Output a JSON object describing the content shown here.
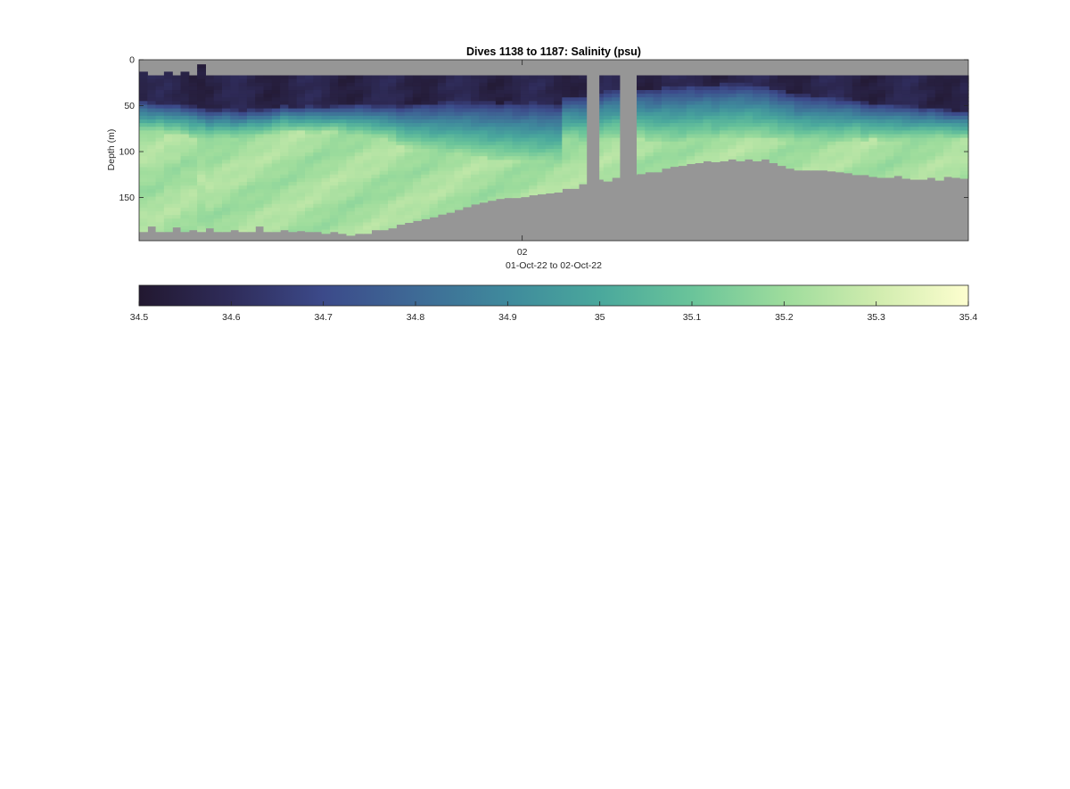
{
  "chart_data": {
    "type": "heatmap",
    "title": "Dives 1138 to 1187: Salinity (psu)",
    "ylabel": "Depth (m)",
    "xlabel": "01-Oct-22 to 02-Oct-22",
    "y_ticks": [
      0,
      50,
      100,
      150
    ],
    "ylim": [
      0,
      197
    ],
    "y_reversed": true,
    "x_ticks": [
      {
        "label": "02",
        "position": 50
      }
    ],
    "xlim": [
      1138,
      1187
    ],
    "no_data_color": "#969696",
    "columns": {
      "count": 100,
      "surface_depth": [
        13,
        17,
        17,
        13,
        17,
        13,
        17,
        5,
        17,
        17,
        17,
        17,
        17,
        17,
        17,
        17,
        17,
        17,
        17,
        17,
        17,
        17,
        17,
        17,
        17,
        17,
        17,
        17,
        17,
        17,
        17,
        17,
        17,
        17,
        17,
        17,
        17,
        17,
        17,
        17,
        17,
        17,
        17,
        17,
        17,
        17,
        17,
        17,
        17,
        17,
        17,
        17,
        17,
        17,
        17,
        17,
        17,
        17,
        17,
        17,
        17,
        17,
        17,
        17,
        17,
        17,
        17,
        17,
        17,
        17,
        17,
        17,
        17,
        17,
        17,
        17,
        17,
        17,
        17,
        17,
        17,
        17,
        17,
        17,
        17,
        17,
        17,
        17,
        17,
        17,
        17,
        17,
        17,
        17,
        17,
        17,
        17,
        17,
        17,
        17
      ],
      "bottom_depth": [
        187,
        181,
        187,
        187,
        182,
        187,
        185,
        187,
        183,
        187,
        187,
        185,
        187,
        187,
        181,
        187,
        187,
        185,
        187,
        186,
        187,
        187,
        189,
        187,
        189,
        191,
        189,
        189,
        185,
        185,
        183,
        179,
        177,
        175,
        173,
        171,
        168,
        166,
        163,
        160,
        157,
        155,
        153,
        151,
        150,
        150,
        149,
        147,
        146,
        145,
        144,
        140,
        140,
        135,
        135,
        130,
        132,
        128,
        128,
        125,
        124,
        122,
        122,
        118,
        116,
        115,
        113,
        112,
        110,
        111,
        110,
        108,
        110,
        108,
        110,
        108,
        112,
        115,
        118,
        120,
        120,
        120,
        120,
        121,
        122,
        123,
        125,
        125,
        127,
        128,
        128,
        126,
        129,
        130,
        130,
        128,
        131,
        127,
        128,
        129
      ],
      "halocline_top": [
        45,
        47,
        48,
        49,
        49,
        50,
        51,
        53,
        55,
        55,
        54,
        55,
        56,
        54,
        55,
        54,
        52,
        50,
        52,
        52,
        50,
        51,
        52,
        51,
        50,
        50,
        49,
        49,
        50,
        50,
        50,
        51,
        50,
        49,
        48,
        48,
        47,
        46,
        47,
        46,
        47,
        47,
        47,
        48,
        47,
        48,
        48,
        46,
        48,
        48,
        49,
        40,
        40,
        40,
        38,
        36,
        33,
        32,
        31,
        30,
        32,
        32,
        33,
        29,
        30,
        30,
        28,
        29,
        28,
        29,
        27,
        27,
        26,
        27,
        28,
        28,
        32,
        34,
        36,
        39,
        39,
        40,
        40,
        41,
        42,
        43,
        45,
        47,
        49,
        48,
        48,
        49,
        50,
        51,
        53,
        52,
        54,
        55,
        56,
        56
      ],
      "halocline_bottom": [
        80,
        80,
        78,
        80,
        80,
        82,
        85,
        85,
        88,
        85,
        85,
        87,
        85,
        84,
        83,
        82,
        80,
        78,
        78,
        78,
        79,
        79,
        78,
        78,
        80,
        82,
        82,
        84,
        85,
        86,
        88,
        92,
        95,
        96,
        98,
        100,
        101,
        102,
        102,
        104,
        105,
        106,
        108,
        108,
        108,
        110,
        110,
        112,
        112,
        112,
        112,
        88,
        88,
        90,
        88,
        88,
        86,
        85,
        85,
        84,
        85,
        88,
        88,
        90,
        90,
        90,
        88,
        88,
        86,
        88,
        86,
        86,
        86,
        84,
        85,
        86,
        86,
        88,
        88,
        90,
        90,
        90,
        90,
        90,
        90,
        88,
        86,
        88,
        86,
        88,
        88,
        88,
        88,
        88,
        86,
        86,
        85,
        86,
        86,
        86
      ]
    },
    "gaps": [
      {
        "from_column": 54,
        "to_column": 55.5,
        "top": 15,
        "bottom": 147
      },
      {
        "from_column": 58,
        "to_column": 60,
        "top": 15,
        "bottom": 143
      }
    ],
    "colorbar": {
      "min": 34.5,
      "max": 35.4,
      "ticks": [
        "34.5",
        "34.6",
        "34.7",
        "34.8",
        "34.9",
        "35",
        "35.1",
        "35.2",
        "35.3",
        "35.4"
      ],
      "colors": [
        "#221830",
        "#2f2c5a",
        "#3c4a8a",
        "#3e6a96",
        "#3f8a9c",
        "#4aa89c",
        "#6ac49a",
        "#9ddc9c",
        "#d0ecae",
        "#fdfecf"
      ]
    }
  }
}
